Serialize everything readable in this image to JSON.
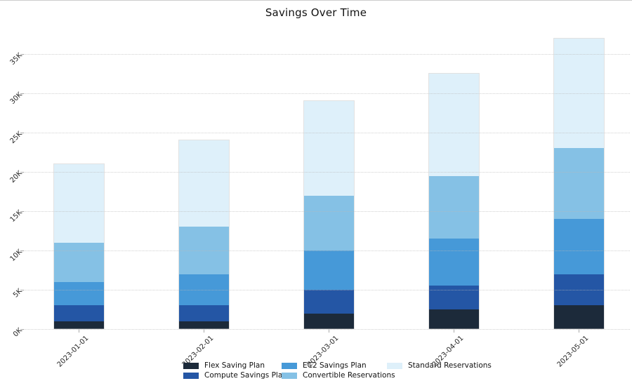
{
  "chart_data": {
    "type": "bar",
    "stacked": true,
    "title": "Savings Over Time",
    "categories": [
      "2023-01-01",
      "2023-02-01",
      "2023-03-01",
      "2023-04-01",
      "2023-05-01"
    ],
    "series": [
      {
        "name": "Flex Saving Plan",
        "color": "#1c2a3a",
        "values": [
          1000,
          1000,
          2000,
          2500,
          3000
        ]
      },
      {
        "name": "Compute Savings Plan",
        "color": "#2456a5",
        "values": [
          2000,
          2000,
          3000,
          3000,
          4000
        ]
      },
      {
        "name": "EC2 Savings Plan",
        "color": "#4699d8",
        "values": [
          3000,
          4000,
          5000,
          6000,
          7000
        ]
      },
      {
        "name": "Convertible Reservations",
        "color": "#85c1e5",
        "values": [
          5000,
          6000,
          7000,
          8000,
          9000
        ]
      },
      {
        "name": "Standard Reservations",
        "color": "#def0fa",
        "values": [
          10000,
          11000,
          12000,
          13000,
          14000
        ]
      }
    ],
    "totals": [
      21000,
      24000,
      29000,
      32500,
      37000
    ],
    "y_tick_labels": [
      "0K",
      "5K",
      "10K",
      "15K",
      "20K",
      "25K",
      "30K",
      "35K"
    ],
    "y_tick_values": [
      0,
      5000,
      10000,
      15000,
      20000,
      25000,
      30000,
      35000
    ],
    "ylim": [
      0,
      37800
    ],
    "xlabel": "",
    "ylabel": "",
    "grid": "horizontal-dotted",
    "legend_position": "bottom-center"
  }
}
